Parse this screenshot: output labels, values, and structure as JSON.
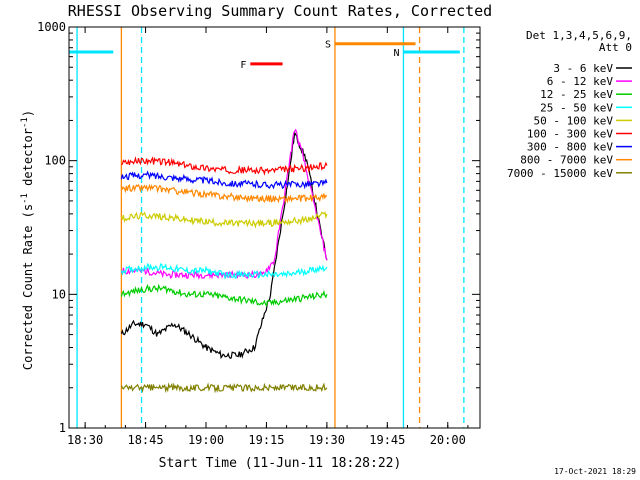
{
  "chart_data": {
    "type": "line",
    "title": "RHESSI Observing Summary Count Rates, Corrected",
    "xlabel": "Start Time (11-Jun-11 18:28:22)",
    "ylabel": "Corrected Count Rate (s⁻¹ detector⁻¹)",
    "ylabel_main": "Corrected Count Rate (s",
    "ylabel_sup1": "-1",
    "ylabel_mid": " detector",
    "ylabel_sup2": "-1",
    "ylabel_end": ")",
    "yscale": "log",
    "ylim": [
      1,
      1000
    ],
    "xlim": [
      "18:26",
      "20:08"
    ],
    "x_ticks": [
      "18:30",
      "18:45",
      "19:00",
      "19:15",
      "19:30",
      "19:45",
      "20:00"
    ],
    "y_ticks": [
      "1",
      "10",
      "100",
      "1000"
    ],
    "legend_header": [
      "Det 1,3,4,5,6,9,",
      "Att 0"
    ],
    "legend_position": "right",
    "footer_date": "17-Oct-2021 18:29",
    "series": [
      {
        "name": "3 - 6 keV",
        "color": "#000000",
        "x": [
          "18:39",
          "18:42",
          "18:45",
          "18:48",
          "18:52",
          "18:56",
          "19:00",
          "19:04",
          "19:08",
          "19:12",
          "19:16",
          "19:20",
          "19:22",
          "19:25",
          "19:28",
          "19:30"
        ],
        "values": [
          5,
          6,
          6,
          5,
          6,
          5,
          4,
          3.5,
          3.5,
          4,
          10,
          60,
          160,
          100,
          35,
          18
        ]
      },
      {
        "name": "6 - 12 keV",
        "color": "#ff00ff",
        "x": [
          "18:39",
          "18:45",
          "18:50",
          "18:55",
          "19:00",
          "19:05",
          "19:10",
          "19:14",
          "19:17",
          "19:20",
          "19:22",
          "19:24",
          "19:27",
          "19:30"
        ],
        "values": [
          15,
          15,
          14,
          14,
          14,
          14,
          14,
          14,
          18,
          70,
          175,
          110,
          45,
          18
        ]
      },
      {
        "name": "12 - 25 keV",
        "color": "#00cc00",
        "x": [
          "18:39",
          "18:45",
          "18:50",
          "18:55",
          "19:00",
          "19:05",
          "19:10",
          "19:15",
          "19:20",
          "19:25",
          "19:30"
        ],
        "values": [
          10,
          11,
          11,
          10,
          10,
          9.5,
          9,
          8.5,
          9,
          9.5,
          10
        ]
      },
      {
        "name": "25 - 50 keV",
        "color": "#00ffff",
        "x": [
          "18:39",
          "18:45",
          "18:50",
          "18:55",
          "19:00",
          "19:05",
          "19:10",
          "19:15",
          "19:20",
          "19:25",
          "19:30"
        ],
        "values": [
          15,
          16,
          16,
          15,
          15,
          14,
          14,
          14,
          14,
          15,
          16
        ]
      },
      {
        "name": "50 - 100 keV",
        "color": "#cccc00",
        "x": [
          "18:39",
          "18:45",
          "18:50",
          "18:55",
          "19:00",
          "19:05",
          "19:10",
          "19:15",
          "19:20",
          "19:25",
          "19:30"
        ],
        "values": [
          37,
          39,
          38,
          36,
          35,
          34,
          34,
          34,
          35,
          36,
          40
        ]
      },
      {
        "name": "100 - 300 keV",
        "color": "#ff0000",
        "x": [
          "18:39",
          "18:45",
          "18:50",
          "18:55",
          "19:00",
          "19:05",
          "19:10",
          "19:15",
          "19:20",
          "19:25",
          "19:30"
        ],
        "values": [
          97,
          100,
          98,
          92,
          88,
          85,
          85,
          84,
          86,
          88,
          92
        ]
      },
      {
        "name": "300 - 800 keV",
        "color": "#0000ff",
        "x": [
          "18:39",
          "18:45",
          "18:50",
          "18:55",
          "19:00",
          "19:05",
          "19:10",
          "19:15",
          "19:20",
          "19:25",
          "19:30"
        ],
        "values": [
          76,
          78,
          76,
          73,
          71,
          68,
          67,
          66,
          66,
          67,
          68
        ]
      },
      {
        "name": "800 - 7000 keV",
        "color": "#ff8800",
        "x": [
          "18:39",
          "18:45",
          "18:50",
          "18:55",
          "19:00",
          "19:05",
          "19:10",
          "19:15",
          "19:20",
          "19:25",
          "19:30"
        ],
        "values": [
          62,
          63,
          61,
          58,
          56,
          54,
          53,
          52,
          52,
          52,
          54
        ]
      },
      {
        "name": "7000 - 15000 keV",
        "color": "#808000",
        "x": [
          "18:39",
          "18:45",
          "18:50",
          "18:55",
          "19:00",
          "19:05",
          "19:10",
          "19:15",
          "19:20",
          "19:25",
          "19:30"
        ],
        "values": [
          2,
          2,
          2,
          2,
          2,
          2,
          2,
          2,
          2,
          2,
          2
        ]
      }
    ],
    "bars": [
      {
        "label": "N",
        "color": "#00e5ff",
        "segments": [
          [
            "18:26",
            "18:37"
          ],
          [
            "19:49",
            "20:03"
          ]
        ],
        "y": 650
      },
      {
        "label": "F",
        "color": "#ff0000",
        "segments": [
          [
            "19:11",
            "19:19"
          ]
        ],
        "y": 530
      },
      {
        "label": "S",
        "color": "#ff8800",
        "segments": [
          [
            "19:32",
            "19:52"
          ]
        ],
        "y": 750
      }
    ],
    "markers": [
      {
        "time": "18:28",
        "color": "#00e5ff",
        "style": "solid"
      },
      {
        "time": "18:39",
        "color": "#ff8800",
        "style": "solid"
      },
      {
        "time": "18:44",
        "color": "#00e5ff",
        "style": "dashed"
      },
      {
        "time": "19:32",
        "color": "#ff8800",
        "style": "solid"
      },
      {
        "time": "19:49",
        "color": "#00e5ff",
        "style": "solid"
      },
      {
        "time": "19:53",
        "color": "#ff8800",
        "style": "dashed"
      },
      {
        "time": "20:04",
        "color": "#00e5ff",
        "style": "dashed"
      }
    ]
  }
}
